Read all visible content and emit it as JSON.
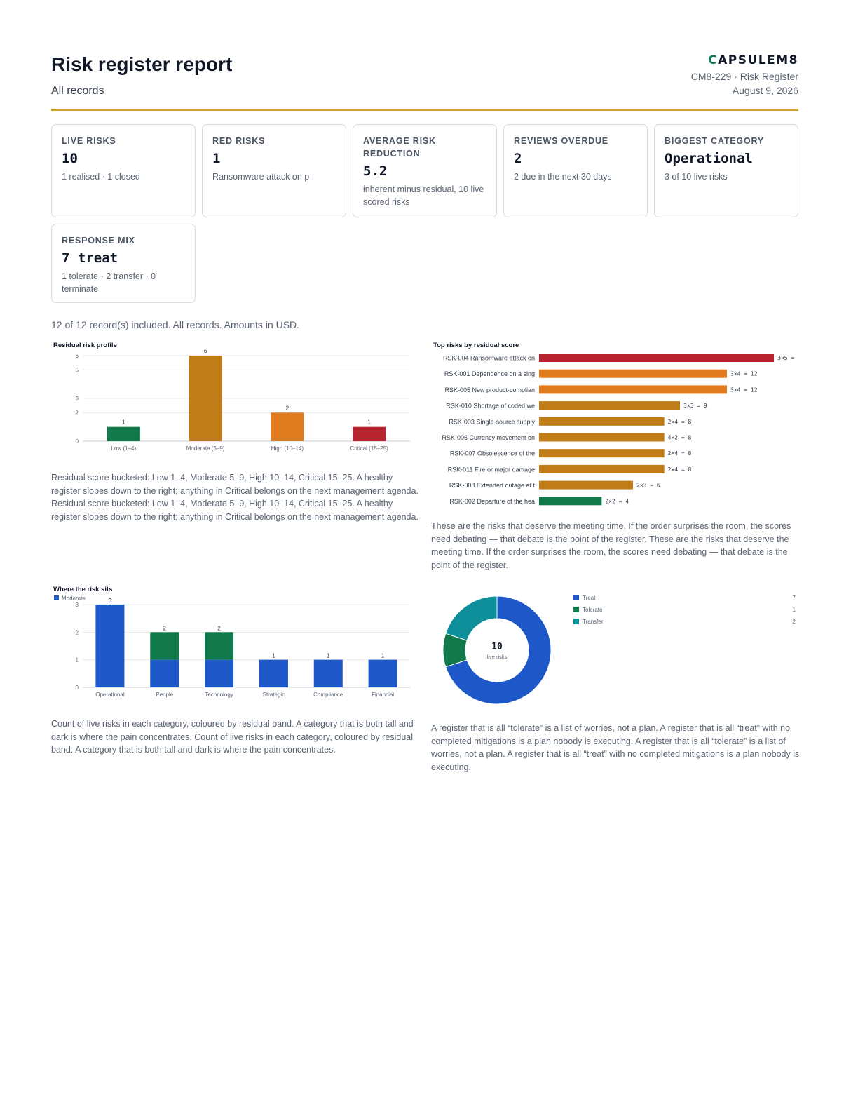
{
  "header": {
    "title": "Risk register report",
    "subtitle": "All records",
    "brand_initial": "C",
    "brand_rest": "APSULEM8",
    "doc_ref": "CM8-229 · Risk Register",
    "date": "August 9, 2026"
  },
  "cards": [
    {
      "label": "Live risks",
      "value": "10",
      "note": "1 realised · 1 closed"
    },
    {
      "label": "Red risks",
      "value": "1",
      "note": "Ransomware attack on p"
    },
    {
      "label": "Average risk reduction",
      "value": "5.2",
      "note": "inherent minus residual, 10 live scored risks"
    },
    {
      "label": "Reviews overdue",
      "value": "2",
      "note": "2 due in the next 30 days"
    },
    {
      "label": "Biggest category",
      "value": "Operational",
      "note": "3 of 10 live risks"
    },
    {
      "label": "Response mix",
      "value": "7 treat",
      "note": "1 tolerate · 2 transfer · 0 terminate"
    }
  ],
  "summary": "12 of 12 record(s) included. All records. Amounts in USD.",
  "captions": {
    "profile": "Residual score bucketed: Low 1–4, Moderate 5–9, High 10–14, Critical 15–25. A healthy register slopes down to the right; anything in Critical belongs on the next management agenda. Residual score bucketed: Low 1–4, Moderate 5–9, High 10–14, Critical 15–25. A healthy register slopes down to the right; anything in Critical belongs on the next management agenda.",
    "top": "These are the risks that deserve the meeting time. If the order surprises the room, the scores need debating — that debate is the point of the register. These are the risks that deserve the meeting time. If the order surprises the room, the scores need debating — that debate is the point of the register.",
    "where": "Count of live risks in each category, coloured by residual band. A category that is both tall and dark is where the pain concentrates. Count of live risks in each category, coloured by residual band. A category that is both tall and dark is where the pain concentrates.",
    "donut": "A register that is all “tolerate” is a list of worries, not a plan. A register that is all “treat” with no completed mitigations is a plan nobody is executing. A register that is all “tolerate” is a list of worries, not a plan. A register that is all “treat” with no completed mitigations is a plan nobody is executing."
  },
  "chart_data": [
    {
      "type": "bar",
      "title": "Residual risk profile",
      "categories": [
        "Low (1–4)",
        "Moderate (5–9)",
        "High (10–14)",
        "Critical (15–25)"
      ],
      "values": [
        1,
        6,
        2,
        1
      ],
      "colors": [
        "#127a4a",
        "#c07d17",
        "#e07b20",
        "#b7232f"
      ],
      "yticks": [
        0,
        2,
        3,
        5,
        6
      ],
      "ylim": [
        0,
        6
      ],
      "grid": true
    },
    {
      "type": "bar",
      "orientation": "horizontal",
      "title": "Top risks by residual score",
      "categories": [
        "RSK-004 Ransomware attack on",
        "RSK-001 Dependence on a sing",
        "RSK-005 New product-complian",
        "RSK-010 Shortage of coded we",
        "RSK-003 Single-source supply",
        "RSK-006 Currency movement on",
        "RSK-007 Obsolescence of the",
        "RSK-011 Fire or major damage",
        "RSK-008 Extended outage at t",
        "RSK-002 Departure of the hea"
      ],
      "values": [
        15,
        12,
        12,
        9,
        8,
        8,
        8,
        8,
        6,
        4
      ],
      "labels": [
        "3×5 =",
        "3×4 = 12",
        "3×4 = 12",
        "3×3 = 9",
        "2×4 = 8",
        "4×2 = 8",
        "2×4 = 8",
        "2×4 = 8",
        "2×3 = 6",
        "2×2 = 4"
      ],
      "colors": [
        "#b7232f",
        "#e07b20",
        "#e07b20",
        "#c07d17",
        "#c07d17",
        "#c07d17",
        "#c07d17",
        "#c07d17",
        "#c07d17",
        "#127a4a"
      ],
      "xlim": [
        0,
        15
      ]
    },
    {
      "type": "bar",
      "stacked": true,
      "title": "Where the risk sits",
      "legend": [
        "Moderate"
      ],
      "legend_position": "top-left",
      "categories": [
        "Operational",
        "People",
        "Technology",
        "Strategic",
        "Compliance",
        "Financial"
      ],
      "series": [
        {
          "name": "Moderate",
          "color": "#1e57c8",
          "values": [
            3,
            1,
            1,
            1,
            1,
            1
          ]
        },
        {
          "color": "#127a4a",
          "values": [
            0,
            1,
            1,
            0,
            0,
            0
          ]
        }
      ],
      "totals": [
        3,
        2,
        2,
        1,
        1,
        1
      ],
      "yticks": [
        0,
        1,
        2,
        3
      ],
      "ylim": [
        0,
        3
      ],
      "grid": true
    },
    {
      "type": "pie",
      "donut": true,
      "center_value": "10",
      "center_label": "live risks",
      "slices": [
        {
          "name": "Treat",
          "value": 7,
          "color": "#1e57c8"
        },
        {
          "name": "Tolerate",
          "value": 1,
          "color": "#127a4a"
        },
        {
          "name": "Transfer",
          "value": 2,
          "color": "#0e8f9a"
        }
      ],
      "legend_position": "right"
    }
  ]
}
